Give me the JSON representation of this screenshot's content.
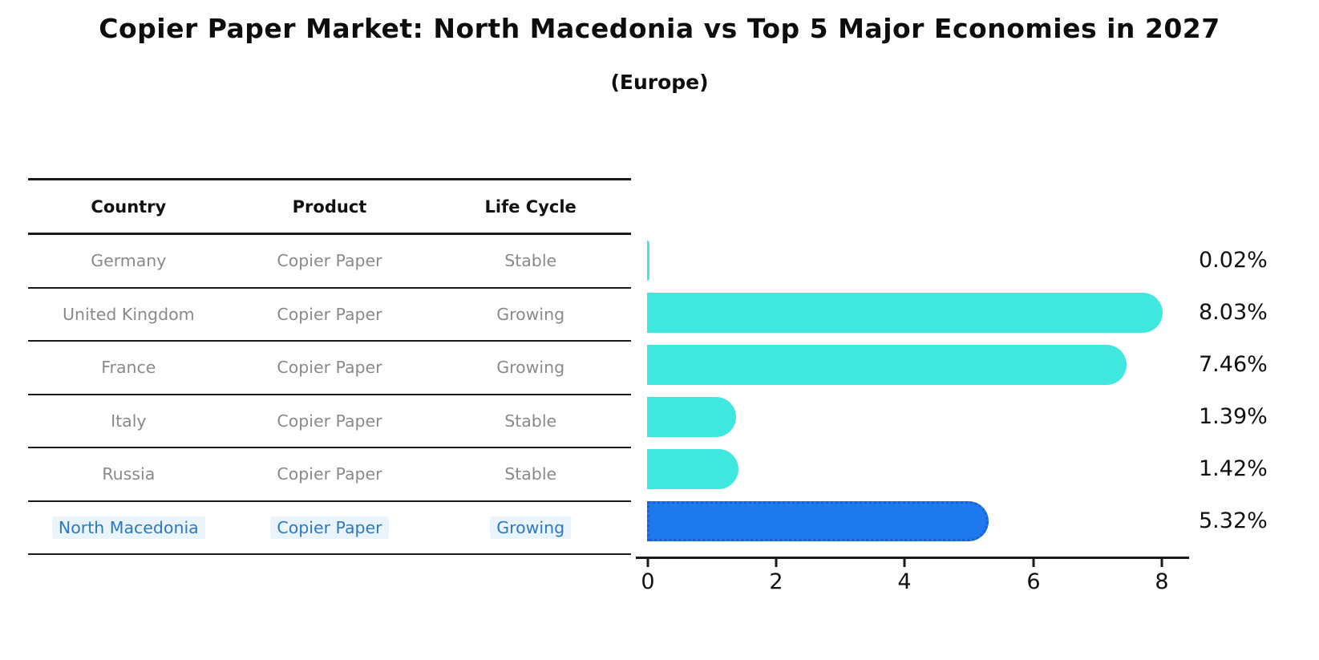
{
  "title": "Copier Paper Market: North Macedonia vs Top 5 Major Economies in 2027",
  "subtitle": "(Europe)",
  "table": {
    "headers": {
      "country": "Country",
      "product": "Product",
      "life_cycle": "Life Cycle"
    },
    "rows": [
      {
        "country": "Germany",
        "product": "Copier Paper",
        "life_cycle": "Stable",
        "share": "0.02%"
      },
      {
        "country": "United Kingdom",
        "product": "Copier Paper",
        "life_cycle": "Growing",
        "share": "8.03%"
      },
      {
        "country": "France",
        "product": "Copier Paper",
        "life_cycle": "Growing",
        "share": "7.46%"
      },
      {
        "country": "Italy",
        "product": "Copier Paper",
        "life_cycle": "Stable",
        "share": "1.39%"
      },
      {
        "country": "Russia",
        "product": "Copier Paper",
        "life_cycle": "Stable",
        "share": "1.42%"
      },
      {
        "country": "North Macedonia",
        "product": "Copier Paper",
        "life_cycle": "Growing",
        "share": "5.32%"
      }
    ]
  },
  "chart_data": {
    "type": "bar",
    "orientation": "horizontal",
    "title": "Copier Paper Market: North Macedonia vs Top 5 Major Economies in 2027",
    "subtitle": "(Europe)",
    "categories": [
      "Germany",
      "United Kingdom",
      "France",
      "Italy",
      "Russia",
      "North Macedonia"
    ],
    "values": [
      0.02,
      8.03,
      7.46,
      1.39,
      1.42,
      5.32
    ],
    "value_labels": [
      "0.02%",
      "8.03%",
      "7.46%",
      "1.39%",
      "1.42%",
      "5.32%"
    ],
    "xlabel": "",
    "ylabel": "",
    "xlim": [
      0,
      8.5
    ],
    "x_ticks": [
      "0",
      "2",
      "4",
      "6",
      "8"
    ],
    "grid": false,
    "legend_position": "none",
    "highlight_index": 5,
    "colors": {
      "bar": "#40e7df",
      "highlight_bar": "#1e79ef",
      "highlight_border": "#1a5fd0",
      "highlight_text": "#2b7abf",
      "highlight_text_bg": "#eaf4fd",
      "table_text": "#8a8a8a",
      "header_text": "#111111",
      "axis": "#1a1a1a"
    }
  }
}
